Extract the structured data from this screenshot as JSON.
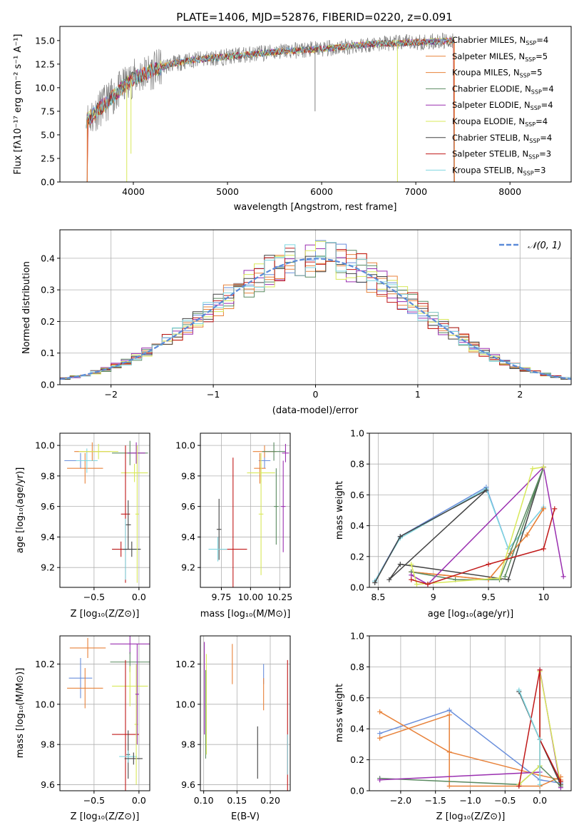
{
  "figure_title": "PLATE=1406, MJD=52876, FIBERID=0220, z=0.091",
  "colors": {
    "grid": "#b0b0b0",
    "data_gray": "#808080",
    "normal_curve": "#5b8bd8",
    "models": [
      "#6a8fdc",
      "#e8823a",
      "#e8823a",
      "#5a8a60",
      "#9a2fb0",
      "#d8e85a",
      "#444444",
      "#c01818",
      "#7fd6e0"
    ]
  },
  "chart_data": [
    {
      "id": "spectrum",
      "type": "line",
      "xlabel": "wavelength [Angstrom, rest frame]",
      "ylabel": "Flux [fλ10⁻¹⁷ erg cm⁻² s⁻¹ A⁻¹]",
      "xlim": [
        3220,
        8650
      ],
      "ylim": [
        0,
        16.5
      ],
      "xticks": [
        4000,
        5000,
        6000,
        7000,
        8000
      ],
      "yticks": [
        0.0,
        2.5,
        5.0,
        7.5,
        10.0,
        12.5,
        15.0
      ],
      "legend_position": "right",
      "continuum": {
        "x": [
          3500,
          3600,
          3700,
          3800,
          3900,
          4000,
          4200,
          4400,
          4600,
          4800,
          5000,
          5200,
          5400,
          5600,
          5800,
          6000,
          6200,
          6400,
          6600,
          6800,
          7000,
          7200,
          7400
        ],
        "y": [
          6.5,
          7.4,
          8.3,
          9.2,
          10.2,
          11.0,
          11.8,
          12.5,
          12.9,
          13.1,
          13.3,
          13.5,
          13.7,
          13.9,
          14.0,
          14.1,
          14.3,
          14.5,
          14.7,
          14.7,
          14.8,
          14.9,
          15.0
        ]
      },
      "series": [
        {
          "name": "Chabrier MILES, N$_{SSP}$=4",
          "label_main": "Chabrier MILES, N",
          "label_sub": "SSP",
          "label_tail": "=4"
        },
        {
          "name": "Salpeter MILES, N$_{SSP}$=5",
          "label_main": "Salpeter MILES, N",
          "label_sub": "SSP",
          "label_tail": "=5"
        },
        {
          "name": "Kroupa MILES, N$_{SSP}$=5",
          "label_main": "Kroupa MILES, N",
          "label_sub": "SSP",
          "label_tail": "=5"
        },
        {
          "name": "Chabrier ELODIE, N$_{SSP}$=4",
          "label_main": "Chabrier ELODIE, N",
          "label_sub": "SSP",
          "label_tail": "=4"
        },
        {
          "name": "Salpeter ELODIE, N$_{SSP}$=4",
          "label_main": "Salpeter ELODIE, N",
          "label_sub": "SSP",
          "label_tail": "=4"
        },
        {
          "name": "Kroupa ELODIE, N$_{SSP}$=4",
          "label_main": "Kroupa ELODIE, N",
          "label_sub": "SSP",
          "label_tail": "=4"
        },
        {
          "name": "Chabrier STELIB, N$_{SSP}$=4",
          "label_main": "Chabrier STELIB, N",
          "label_sub": "SSP",
          "label_tail": "=4"
        },
        {
          "name": "Salpeter STELIB, N$_{SSP}$=3",
          "label_main": "Salpeter STELIB, N",
          "label_sub": "SSP",
          "label_tail": "=3"
        },
        {
          "name": "Kroupa STELIB, N$_{SSP}$=3",
          "label_main": "Kroupa STELIB, N",
          "label_sub": "SSP",
          "label_tail": "=3"
        }
      ]
    },
    {
      "id": "residuals",
      "type": "step",
      "xlabel": "(data-model)/error",
      "ylabel": "Normed distribution",
      "xlim": [
        -2.5,
        2.5
      ],
      "ylim": [
        0,
        0.49
      ],
      "xticks": [
        -2,
        -1,
        0,
        1,
        2
      ],
      "xtick_labels": [
        "−2",
        "−1",
        "0",
        "1",
        "2"
      ],
      "yticks": [
        0.0,
        0.1,
        0.2,
        0.3,
        0.4
      ],
      "legend_label": "𝒩(0, 1)",
      "legend_position": "top-right"
    },
    {
      "id": "age_vs_Z",
      "type": "errorbar",
      "xlabel": "Z [log₁₀(Z/Z⊙)]",
      "ylabel": "age  [log₁₀(age/yr)]",
      "xlim": [
        -0.88,
        0.12
      ],
      "ylim": [
        9.07,
        10.08
      ],
      "xticks": [
        -0.5,
        0.0
      ],
      "xtick_labels": [
        "−0.5",
        "0.0"
      ],
      "yticks": [
        9.2,
        9.4,
        9.6,
        9.8,
        10.0
      ],
      "points": [
        {
          "c": 0,
          "x": -0.65,
          "y": 9.9,
          "ex": 0.18,
          "ey": 0.05
        },
        {
          "c": 1,
          "x": -0.6,
          "y": 9.85,
          "ex": 0.2,
          "ey": 0.1
        },
        {
          "c": 8,
          "x": -0.58,
          "y": 9.9,
          "ex": 0.12,
          "ey": 0.08
        },
        {
          "c": 2,
          "x": -0.52,
          "y": 9.96,
          "ex": 0.2,
          "ey": 0.06
        },
        {
          "c": 5,
          "x": -0.45,
          "y": 9.96,
          "ex": 0.22,
          "ey": 0.05
        },
        {
          "c": 3,
          "x": -0.1,
          "y": 9.95,
          "ex": 0.2,
          "ey": 0.08
        },
        {
          "c": 4,
          "x": -0.03,
          "y": 9.95,
          "ex": 0.1,
          "ey": 0.07
        },
        {
          "c": 5,
          "x": -0.05,
          "y": 9.82,
          "ex": 0.15,
          "ey": 0.06
        },
        {
          "c": 7,
          "x": -0.15,
          "y": 9.55,
          "ex": 0.05,
          "ey": 0.45
        },
        {
          "c": 6,
          "x": -0.12,
          "y": 9.48,
          "ex": 0.03,
          "ey": 0.16
        },
        {
          "c": 8,
          "x": -0.15,
          "y": 9.32,
          "ex": 0.15,
          "ey": 0.2
        },
        {
          "c": 7,
          "x": -0.2,
          "y": 9.32,
          "ex": 0.1,
          "ey": 0.05
        },
        {
          "c": 6,
          "x": -0.08,
          "y": 9.32,
          "ex": 0.1,
          "ey": 0.05
        },
        {
          "c": 5,
          "x": -0.02,
          "y": 9.55,
          "ex": 0.02,
          "ey": 0.45
        }
      ]
    },
    {
      "id": "age_vs_mass",
      "type": "errorbar",
      "xlabel": "mass [log₁₀(M/M⊙)]",
      "ylabel": "",
      "xlim": [
        9.57,
        10.34
      ],
      "ylim": [
        9.07,
        10.08
      ],
      "xticks": [
        9.75,
        10.0,
        10.25
      ],
      "xtick_labels": [
        "9.75",
        "10.00",
        "10.25"
      ],
      "yticks": [
        9.2,
        9.4,
        9.6,
        9.8,
        10.0
      ],
      "points": [
        {
          "c": 0,
          "x": 10.12,
          "y": 9.9,
          "ex": 0.05,
          "ey": 0.05
        },
        {
          "c": 1,
          "x": 10.08,
          "y": 9.85,
          "ex": 0.05,
          "ey": 0.1
        },
        {
          "c": 2,
          "x": 10.12,
          "y": 9.96,
          "ex": 0.1,
          "ey": 0.04
        },
        {
          "c": 3,
          "x": 10.2,
          "y": 9.96,
          "ex": 0.1,
          "ey": 0.06
        },
        {
          "c": 4,
          "x": 10.3,
          "y": 9.95,
          "ex": 0.03,
          "ey": 0.06
        },
        {
          "c": 5,
          "x": 10.09,
          "y": 9.82,
          "ex": 0.12,
          "ey": 0.06
        },
        {
          "c": 7,
          "x": 9.85,
          "y": 9.32,
          "ex": 0.12,
          "ey": 0.6
        },
        {
          "c": 6,
          "x": 9.73,
          "y": 9.45,
          "ex": 0.02,
          "ey": 0.2
        },
        {
          "c": 8,
          "x": 9.72,
          "y": 9.32,
          "ex": 0.08,
          "ey": 0.08
        },
        {
          "c": 4,
          "x": 10.28,
          "y": 9.6,
          "ex": 0.02,
          "ey": 0.3
        },
        {
          "c": 3,
          "x": 10.22,
          "y": 9.6,
          "ex": 0.02,
          "ey": 0.25
        },
        {
          "c": 5,
          "x": 10.09,
          "y": 9.55,
          "ex": 0.02,
          "ey": 0.4
        }
      ]
    },
    {
      "id": "weight_vs_age",
      "type": "line",
      "xlabel": "age  [log₁₀(age/yr)]",
      "ylabel": "mass weight",
      "xlim": [
        8.42,
        10.25
      ],
      "ylim": [
        0,
        1.0
      ],
      "xticks": [
        8.5,
        9.0,
        9.5,
        10.0
      ],
      "yticks": [
        0.0,
        0.2,
        0.4,
        0.6,
        0.8,
        1.0
      ],
      "series": [
        {
          "c": 0,
          "x": [
            8.47,
            8.7,
            9.48,
            9.68,
            10.0
          ],
          "y": [
            0.04,
            0.33,
            0.65,
            0.25,
            0.52
          ]
        },
        {
          "c": 8,
          "x": [
            8.47,
            8.7,
            9.48,
            9.68,
            10.0
          ],
          "y": [
            0.04,
            0.32,
            0.64,
            0.25,
            0.52
          ]
        },
        {
          "c": 6,
          "x": [
            8.47,
            8.7,
            9.48,
            8.6,
            8.7,
            9.68,
            10.0
          ],
          "y": [
            0.03,
            0.33,
            0.63,
            0.05,
            0.15,
            0.05,
            0.78
          ]
        },
        {
          "c": 1,
          "x": [
            8.8,
            9.5,
            9.7,
            9.85,
            10.0
          ],
          "y": [
            0.1,
            0.05,
            0.22,
            0.34,
            0.51
          ]
        },
        {
          "c": 2,
          "x": [
            8.8,
            9.5,
            9.7,
            9.85,
            10.0
          ],
          "y": [
            0.1,
            0.05,
            0.22,
            0.34,
            0.51
          ]
        },
        {
          "c": 3,
          "x": [
            8.8,
            9.2,
            9.6,
            10.0,
            9.65
          ],
          "y": [
            0.1,
            0.05,
            0.05,
            0.78,
            0.07
          ]
        },
        {
          "c": 4,
          "x": [
            8.8,
            8.95,
            10.0,
            10.18
          ],
          "y": [
            0.08,
            0.02,
            0.78,
            0.07
          ]
        },
        {
          "c": 5,
          "x": [
            8.8,
            8.85,
            9.6,
            9.9,
            10.0
          ],
          "y": [
            0.15,
            0.02,
            0.06,
            0.77,
            0.78
          ]
        },
        {
          "c": 7,
          "x": [
            8.8,
            8.95,
            9.5,
            10.0,
            10.1
          ],
          "y": [
            0.05,
            0.02,
            0.15,
            0.25,
            0.51
          ]
        }
      ]
    },
    {
      "id": "mass_vs_Z",
      "type": "errorbar",
      "xlabel": "Z [log₁₀(Z/Z⊙)]",
      "ylabel": "mass [log₁₀(M/M⊙)]",
      "xlim": [
        -0.88,
        0.12
      ],
      "ylim": [
        9.57,
        10.34
      ],
      "xticks": [
        -0.5,
        0.0
      ],
      "xtick_labels": [
        "−0.5",
        "0.0"
      ],
      "yticks": [
        9.6,
        9.8,
        10.0,
        10.2
      ],
      "points": [
        {
          "c": 0,
          "x": -0.65,
          "y": 10.13,
          "ex": 0.13,
          "ey": 0.1
        },
        {
          "c": 1,
          "x": -0.6,
          "y": 10.08,
          "ex": 0.2,
          "ey": 0.1
        },
        {
          "c": 2,
          "x": -0.57,
          "y": 10.28,
          "ex": 0.2,
          "ey": 0.05
        },
        {
          "c": 4,
          "x": -0.1,
          "y": 10.3,
          "ex": 0.22,
          "ey": 0.05
        },
        {
          "c": 3,
          "x": -0.1,
          "y": 10.21,
          "ex": 0.22,
          "ey": 0.05
        },
        {
          "c": 5,
          "x": -0.1,
          "y": 10.09,
          "ex": 0.2,
          "ey": 0.1
        },
        {
          "c": 7,
          "x": -0.15,
          "y": 9.85,
          "ex": 0.15,
          "ey": 0.37
        },
        {
          "c": 6,
          "x": -0.12,
          "y": 9.75,
          "ex": 0.02,
          "ey": 0.12
        },
        {
          "c": 8,
          "x": -0.12,
          "y": 9.74,
          "ex": 0.1,
          "ey": 0.03
        },
        {
          "c": 6,
          "x": -0.06,
          "y": 9.73,
          "ex": 0.1,
          "ey": 0.03
        },
        {
          "c": 5,
          "x": -0.03,
          "y": 9.9,
          "ex": 0.02,
          "ey": 0.3
        },
        {
          "c": 4,
          "x": -0.02,
          "y": 10.05,
          "ex": 0.02,
          "ey": 0.25
        }
      ]
    },
    {
      "id": "mass_vs_ebv",
      "type": "errorbar",
      "xlabel": "E(B-V)",
      "ylabel": "",
      "xlim": [
        0.095,
        0.23
      ],
      "ylim": [
        9.57,
        10.34
      ],
      "xticks": [
        0.1,
        0.15,
        0.2
      ],
      "xtick_labels": [
        "0.10",
        "0.15",
        "0.20"
      ],
      "yticks": [
        9.6,
        9.8,
        10.0,
        10.2
      ],
      "points": [
        {
          "c": 4,
          "x": 0.101,
          "y": 10.08,
          "ex": 0,
          "ey": 0.23
        },
        {
          "c": 3,
          "x": 0.103,
          "y": 9.95,
          "ex": 0,
          "ey": 0.22
        },
        {
          "c": 5,
          "x": 0.104,
          "y": 10.0,
          "ex": 0,
          "ey": 0.25
        },
        {
          "c": 2,
          "x": 0.143,
          "y": 10.2,
          "ex": 0,
          "ey": 0.1
        },
        {
          "c": 6,
          "x": 0.181,
          "y": 9.76,
          "ex": 0,
          "ey": 0.13
        },
        {
          "c": 0,
          "x": 0.19,
          "y": 10.15,
          "ex": 0,
          "ey": 0.05
        },
        {
          "c": 1,
          "x": 0.19,
          "y": 10.05,
          "ex": 0,
          "ey": 0.08
        },
        {
          "c": 7,
          "x": 0.226,
          "y": 9.85,
          "ex": 0,
          "ey": 0.37
        },
        {
          "c": 8,
          "x": 0.226,
          "y": 9.75,
          "ex": 0,
          "ey": 0.1
        }
      ]
    },
    {
      "id": "weight_vs_Z",
      "type": "line",
      "xlabel": "Z [log₁₀(Z/Z⊙)]",
      "ylabel": "mass weight",
      "xlim": [
        -2.45,
        0.45
      ],
      "ylim": [
        0,
        1.0
      ],
      "xticks": [
        -2.0,
        -1.5,
        -1.0,
        -0.5,
        0.0
      ],
      "xtick_labels": [
        "−2.0",
        "−1.5",
        "−1.0",
        "−0.5",
        "0.0"
      ],
      "yticks": [
        0.0,
        0.2,
        0.4,
        0.6,
        0.8,
        1.0
      ],
      "series": [
        {
          "c": 0,
          "x": [
            -2.3,
            -1.3,
            0.0,
            0.3
          ],
          "y": [
            0.37,
            0.52,
            0.07,
            0.05
          ]
        },
        {
          "c": 1,
          "x": [
            -2.3,
            -1.3,
            -1.3,
            0.0,
            0.3
          ],
          "y": [
            0.34,
            0.49,
            0.03,
            0.03,
            0.09
          ]
        },
        {
          "c": 2,
          "x": [
            -2.3,
            -1.3,
            0.0,
            0.3
          ],
          "y": [
            0.51,
            0.25,
            0.1,
            0.07
          ]
        },
        {
          "c": 3,
          "x": [
            -2.3,
            -0.3,
            0.0,
            0.3
          ],
          "y": [
            0.08,
            0.04,
            0.16,
            0.03
          ]
        },
        {
          "c": 4,
          "x": [
            -2.3,
            0.0,
            0.0,
            0.3
          ],
          "y": [
            0.07,
            0.12,
            0.78,
            0.02
          ]
        },
        {
          "c": 5,
          "x": [
            -0.3,
            0.0,
            0.0,
            0.3
          ],
          "y": [
            0.04,
            0.16,
            0.77,
            0.04
          ]
        },
        {
          "c": 6,
          "x": [
            -0.3,
            0.0,
            0.3
          ],
          "y": [
            0.64,
            0.33,
            0.04
          ]
        },
        {
          "c": 7,
          "x": [
            -0.3,
            0.0,
            0.0,
            0.3
          ],
          "y": [
            0.03,
            0.78,
            0.33,
            0.06
          ]
        },
        {
          "c": 8,
          "x": [
            -0.3,
            0.0,
            0.0
          ],
          "y": [
            0.65,
            0.33,
            0.04
          ]
        }
      ]
    }
  ]
}
